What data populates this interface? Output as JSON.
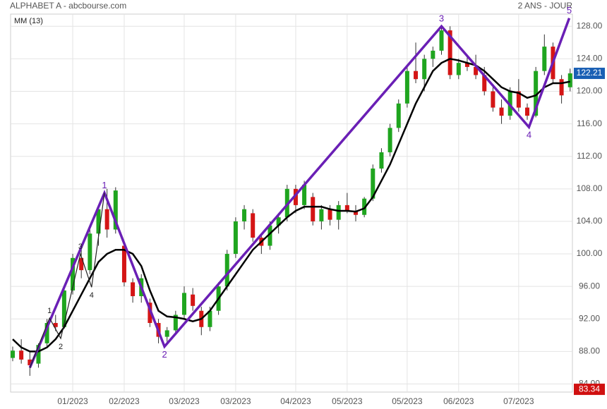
{
  "chart_data": {
    "type": "candlestick",
    "title": "ALPHABET A - abcbourse.com",
    "subtitle": "2 ANS - JOUR",
    "legend_label": "MM (13)",
    "grid": true,
    "up_color": "#1fa51f",
    "down_color": "#d41515",
    "ma_color": "#000000",
    "ylim": [
      83,
      129.5
    ],
    "yticks": [
      {
        "value": 84,
        "label": "84.00"
      },
      {
        "value": 88,
        "label": "88.00"
      },
      {
        "value": 92,
        "label": "92.00"
      },
      {
        "value": 96,
        "label": "96.00"
      },
      {
        "value": 100,
        "label": "100.00"
      },
      {
        "value": 104,
        "label": "104.00"
      },
      {
        "value": 108,
        "label": "108.00"
      },
      {
        "value": 112,
        "label": "112.00"
      },
      {
        "value": 116,
        "label": "116.00"
      },
      {
        "value": 120,
        "label": "120.00"
      },
      {
        "value": 124,
        "label": "124.00"
      },
      {
        "value": 128,
        "label": "128.00"
      }
    ],
    "categories": [
      null,
      null,
      null,
      null,
      null,
      null,
      null,
      "01/2023",
      null,
      null,
      null,
      null,
      null,
      "02/2023",
      null,
      null,
      null,
      null,
      null,
      null,
      "03/2023",
      null,
      null,
      null,
      null,
      null,
      "03/2023",
      null,
      null,
      null,
      null,
      null,
      null,
      "04/2023",
      null,
      null,
      null,
      null,
      null,
      "05/2023",
      null,
      null,
      null,
      null,
      null,
      null,
      "05/2023",
      null,
      null,
      null,
      null,
      null,
      "06/2023",
      null,
      null,
      null,
      null,
      null,
      null,
      "07/2023",
      null,
      null,
      null,
      null,
      null,
      null
    ],
    "candles": [
      [
        87.2,
        88.6,
        86.8,
        88.1
      ],
      [
        88.1,
        89.5,
        86.5,
        87
      ],
      [
        87,
        88,
        85,
        86.3
      ],
      [
        86.5,
        89,
        86,
        88.8
      ],
      [
        89,
        92,
        88.5,
        91.5
      ],
      [
        91.5,
        92.5,
        90.5,
        91
      ],
      [
        91,
        96,
        90.8,
        95.5
      ],
      [
        95.5,
        100,
        95,
        99.5
      ],
      [
        99.5,
        101,
        97,
        98
      ],
      [
        98,
        103,
        97.5,
        102.5
      ],
      [
        102.5,
        106,
        101,
        105.5
      ],
      [
        105.5,
        108,
        102,
        103
      ],
      [
        103,
        108.2,
        102.5,
        107.8
      ],
      [
        101,
        101.5,
        96,
        96.5
      ],
      [
        96.5,
        97,
        94,
        94.8
      ],
      [
        94.8,
        97.5,
        94,
        97
      ],
      [
        94,
        94.5,
        91,
        91.5
      ],
      [
        91.5,
        92,
        89,
        89.8
      ],
      [
        89.8,
        91,
        89.2,
        90.6
      ],
      [
        90.6,
        93,
        90,
        92.5
      ],
      [
        92.5,
        96,
        92,
        95.2
      ],
      [
        95,
        95.8,
        93,
        93.6
      ],
      [
        93,
        93.5,
        90,
        91
      ],
      [
        91,
        93.5,
        90.5,
        93
      ],
      [
        93,
        96.5,
        92.5,
        96
      ],
      [
        96,
        100.5,
        95.5,
        100
      ],
      [
        100,
        104.5,
        99.5,
        104
      ],
      [
        104,
        106,
        103,
        105.5
      ],
      [
        105,
        105.5,
        101.5,
        102
      ],
      [
        102,
        102.5,
        100,
        101
      ],
      [
        101,
        104,
        100.5,
        103.5
      ],
      [
        103.5,
        105,
        102.5,
        104.5
      ],
      [
        104.5,
        108.5,
        104,
        108
      ],
      [
        108,
        108.5,
        105,
        106
      ],
      [
        106,
        109,
        105.5,
        108.5
      ],
      [
        107,
        107.5,
        103.5,
        104
      ],
      [
        104,
        106,
        103,
        105.5
      ],
      [
        105.5,
        106,
        103.5,
        104.2
      ],
      [
        104.2,
        106.5,
        103,
        106
      ],
      [
        106,
        107.5,
        105,
        105.3
      ],
      [
        105.3,
        106,
        104,
        104.8
      ],
      [
        104.8,
        107,
        104.5,
        106.8
      ],
      [
        106.8,
        111,
        106.5,
        110.5
      ],
      [
        110.5,
        113,
        110,
        112.5
      ],
      [
        112.5,
        116,
        112,
        115.5
      ],
      [
        115.5,
        119,
        115,
        118.5
      ],
      [
        118.5,
        123,
        118,
        122.5
      ],
      [
        122.5,
        126,
        121,
        121.5
      ],
      [
        121.5,
        124.5,
        120,
        124
      ],
      [
        124,
        125.5,
        123,
        125
      ],
      [
        125,
        128,
        124.5,
        127.5
      ],
      [
        127.5,
        128,
        121.5,
        122
      ],
      [
        122,
        124,
        121.5,
        123.5
      ],
      [
        123.5,
        124.5,
        122.5,
        123
      ],
      [
        123,
        124.5,
        121.5,
        122
      ],
      [
        122,
        123,
        119.5,
        120
      ],
      [
        120,
        120.5,
        117.5,
        118
      ],
      [
        118,
        119,
        116,
        117
      ],
      [
        117,
        120.5,
        116.5,
        120
      ],
      [
        120,
        121.5,
        117.5,
        118
      ],
      [
        118,
        118.5,
        116.5,
        117
      ],
      [
        117,
        123,
        116.8,
        122.5
      ],
      [
        122.5,
        127,
        122,
        125.5
      ],
      [
        125.5,
        126,
        121,
        121.5
      ],
      [
        121.5,
        122,
        118.5,
        119.5
      ],
      [
        120.5,
        122.8,
        120,
        122.21
      ]
    ],
    "ma": [
      89.5,
      88.5,
      88,
      88,
      88.5,
      89.5,
      91,
      93,
      95,
      97,
      99,
      100,
      100.5,
      100.5,
      100,
      98.5,
      95.5,
      93,
      92.3,
      92.2,
      92,
      91.7,
      92,
      93,
      94.5,
      96,
      97.5,
      99,
      100.5,
      101.5,
      102.5,
      103.5,
      104.5,
      105.3,
      105.8,
      105.8,
      105.8,
      105.5,
      105.3,
      105.3,
      105.2,
      105.6,
      107,
      109,
      111,
      113.5,
      116,
      118.5,
      120.5,
      122.5,
      123.5,
      124,
      123.8,
      123.5,
      123.2,
      122.5,
      121.5,
      120.5,
      120,
      119.8,
      119.2,
      119.5,
      120.5,
      121,
      121,
      121.2
    ],
    "wave": {
      "color": "#6a1fb5",
      "x": [
        2,
        10.7,
        17.7,
        50,
        60.2,
        64.9
      ],
      "y": [
        86,
        107.5,
        88.6,
        128,
        115.6,
        129
      ],
      "labels": [
        null,
        "1",
        "2",
        "3",
        "4",
        "5"
      ]
    },
    "subwave": {
      "color": "#222222",
      "x": [
        2,
        4.3,
        5.6,
        7.9,
        9.2,
        10.7
      ],
      "y": [
        86,
        92.1,
        89.6,
        100,
        95.9,
        107.5
      ],
      "labels": [
        null,
        "1",
        "2",
        "3",
        "4",
        null
      ]
    },
    "price_tags": [
      {
        "value": 122.21,
        "color": "#1a5fb4"
      },
      {
        "value": 83.34,
        "color": "#d01010"
      }
    ]
  }
}
